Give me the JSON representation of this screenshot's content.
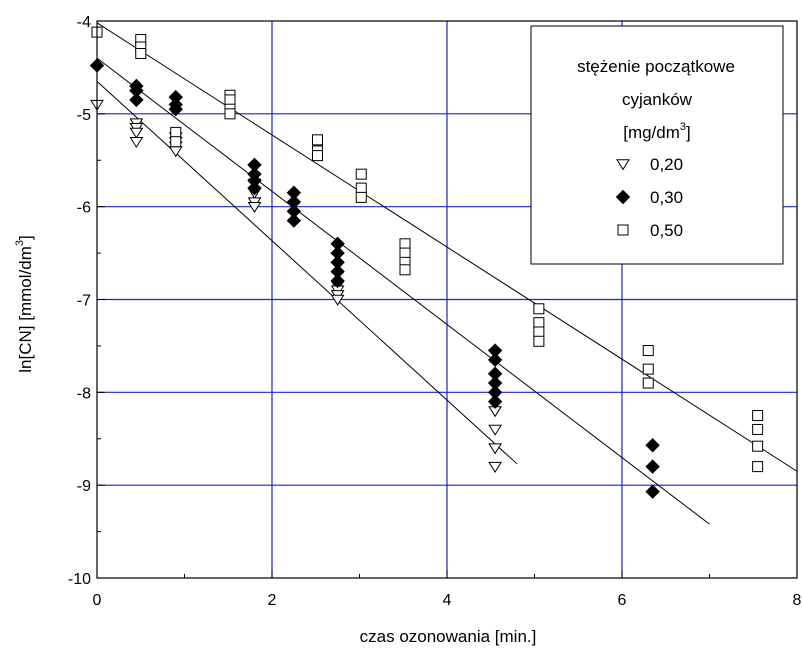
{
  "chart_data": {
    "type": "scatter",
    "xlabel": "czas ozonowania [min.]",
    "ylabel": "ln[CN]  [mmol/dm",
    "ylabel_sup": "3",
    "ylabel_end": "]",
    "xlim": [
      0,
      8
    ],
    "ylim": [
      -10,
      -4
    ],
    "x_ticks": [
      "0",
      "2",
      "4",
      "6",
      "8"
    ],
    "y_ticks": [
      "-4",
      "-5",
      "-6",
      "-7",
      "-8",
      "-9",
      "-10"
    ],
    "grid": true,
    "grid_color": "#1f24c8",
    "legend": {
      "placement": "top-right",
      "title_line1": "stężenie początkowe",
      "title_line2": "cyjanków",
      "unit_prefix": "[mg/dm",
      "unit_sup": "3",
      "unit_suffix": "]"
    },
    "series": [
      {
        "name": "0,20",
        "marker": "triangle-down-open",
        "points": [
          [
            0,
            -4.9
          ],
          [
            0.45,
            -5.1
          ],
          [
            0.45,
            -5.15
          ],
          [
            0.45,
            -5.2
          ],
          [
            0.45,
            -5.3
          ],
          [
            0.9,
            -5.25
          ],
          [
            0.9,
            -5.3
          ],
          [
            0.9,
            -5.35
          ],
          [
            0.9,
            -5.4
          ],
          [
            1.8,
            -5.75
          ],
          [
            1.8,
            -5.85
          ],
          [
            1.8,
            -5.95
          ],
          [
            1.8,
            -6.0
          ],
          [
            2.75,
            -6.85
          ],
          [
            2.75,
            -6.9
          ],
          [
            2.75,
            -6.95
          ],
          [
            2.75,
            -7.0
          ],
          [
            4.55,
            -8.2
          ],
          [
            4.55,
            -8.4
          ],
          [
            4.55,
            -8.6
          ],
          [
            4.55,
            -8.8
          ]
        ],
        "fit": [
          [
            0,
            -4.65
          ],
          [
            4.8,
            -8.77
          ]
        ]
      },
      {
        "name": "0,30",
        "marker": "diamond-filled",
        "points": [
          [
            0,
            -4.48
          ],
          [
            0.45,
            -4.7
          ],
          [
            0.45,
            -4.75
          ],
          [
            0.45,
            -4.85
          ],
          [
            0.9,
            -4.82
          ],
          [
            0.9,
            -4.9
          ],
          [
            0.9,
            -4.95
          ],
          [
            1.8,
            -5.55
          ],
          [
            1.8,
            -5.65
          ],
          [
            1.8,
            -5.72
          ],
          [
            1.8,
            -5.8
          ],
          [
            2.25,
            -5.85
          ],
          [
            2.25,
            -5.95
          ],
          [
            2.25,
            -6.05
          ],
          [
            2.25,
            -6.15
          ],
          [
            2.75,
            -6.4
          ],
          [
            2.75,
            -6.5
          ],
          [
            2.75,
            -6.6
          ],
          [
            2.75,
            -6.7
          ],
          [
            2.75,
            -6.8
          ],
          [
            4.55,
            -7.55
          ],
          [
            4.55,
            -7.65
          ],
          [
            4.55,
            -7.8
          ],
          [
            4.55,
            -7.9
          ],
          [
            4.55,
            -8.0
          ],
          [
            4.55,
            -8.1
          ],
          [
            6.35,
            -8.57
          ],
          [
            6.35,
            -8.8
          ],
          [
            6.35,
            -9.07
          ]
        ],
        "fit": [
          [
            0,
            -4.4
          ],
          [
            7,
            -9.42
          ]
        ]
      },
      {
        "name": "0,50",
        "marker": "square-open",
        "points": [
          [
            0,
            -4.12
          ],
          [
            0.5,
            -4.2
          ],
          [
            0.5,
            -4.28
          ],
          [
            0.5,
            -4.35
          ],
          [
            0.9,
            -5.2
          ],
          [
            0.9,
            -5.3
          ],
          [
            1.52,
            -4.8
          ],
          [
            1.52,
            -4.85
          ],
          [
            1.52,
            -4.95
          ],
          [
            1.52,
            -5.0
          ],
          [
            2.52,
            -5.28
          ],
          [
            2.52,
            -5.4
          ],
          [
            2.52,
            -5.45
          ],
          [
            3.02,
            -5.65
          ],
          [
            3.02,
            -5.8
          ],
          [
            3.02,
            -5.9
          ],
          [
            3.52,
            -6.4
          ],
          [
            3.52,
            -6.5
          ],
          [
            3.52,
            -6.6
          ],
          [
            3.52,
            -6.68
          ],
          [
            5.05,
            -7.1
          ],
          [
            5.05,
            -7.25
          ],
          [
            5.05,
            -7.35
          ],
          [
            5.05,
            -7.45
          ],
          [
            6.3,
            -7.55
          ],
          [
            6.3,
            -7.75
          ],
          [
            6.3,
            -7.9
          ],
          [
            7.55,
            -8.25
          ],
          [
            7.55,
            -8.4
          ],
          [
            7.55,
            -8.58
          ],
          [
            7.55,
            -8.8
          ]
        ],
        "fit": [
          [
            0,
            -4.02
          ],
          [
            8,
            -8.85
          ]
        ]
      }
    ]
  }
}
